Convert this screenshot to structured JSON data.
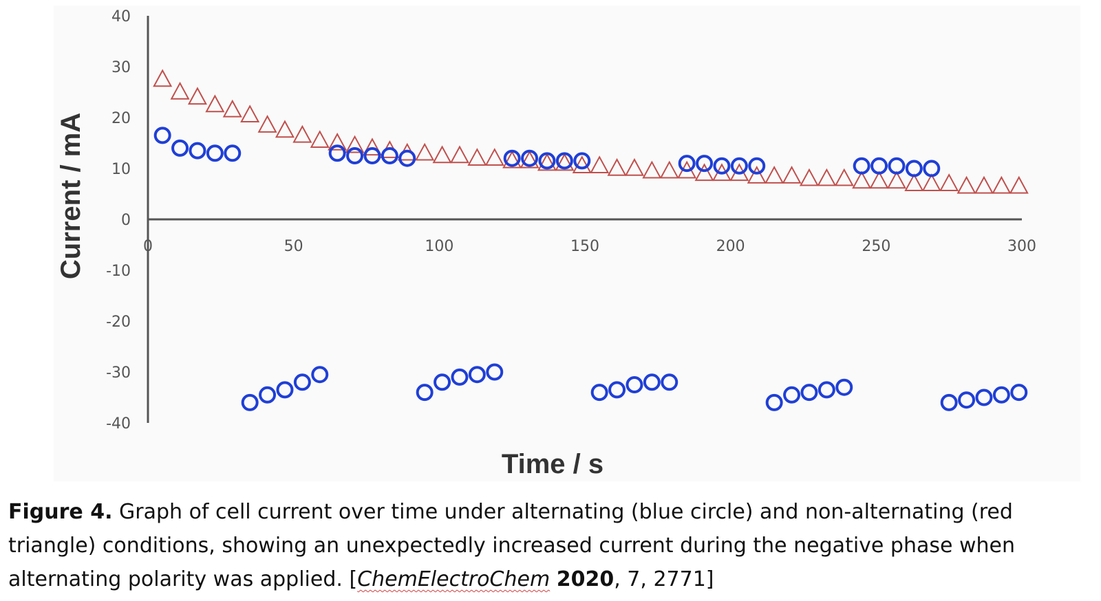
{
  "chart_data": {
    "type": "scatter",
    "title": "",
    "xlabel": "Time / s",
    "ylabel": "Current / mA",
    "xlim": [
      0,
      300
    ],
    "ylim": [
      -40,
      40
    ],
    "x_ticks": [
      "0",
      "50",
      "100",
      "150",
      "200",
      "250",
      "300"
    ],
    "y_ticks": [
      "40",
      "30",
      "20",
      "10",
      "0",
      "-10",
      "-20",
      "-30",
      "-40"
    ],
    "series": [
      {
        "name": "non-alternating (red triangle)",
        "marker": "triangle",
        "color": "#c0504d",
        "x": [
          5,
          11,
          17,
          23,
          29,
          35,
          41,
          47,
          53,
          59,
          65,
          71,
          77,
          83,
          89,
          95,
          101,
          107,
          113,
          119,
          125,
          131,
          137,
          143,
          149,
          155,
          161,
          167,
          173,
          179,
          185,
          191,
          197,
          203,
          209,
          215,
          221,
          227,
          233,
          239,
          245,
          251,
          257,
          263,
          269,
          275,
          281,
          287,
          293,
          299
        ],
        "y": [
          27.5,
          25.0,
          24.0,
          22.5,
          21.5,
          20.5,
          18.5,
          17.5,
          16.5,
          15.5,
          15.0,
          14.5,
          14.0,
          13.5,
          13.0,
          13.0,
          12.5,
          12.5,
          12.0,
          12.0,
          11.5,
          11.5,
          11.0,
          11.0,
          10.5,
          10.5,
          10.0,
          10.0,
          9.5,
          9.5,
          9.5,
          9.0,
          9.0,
          9.0,
          8.5,
          8.5,
          8.5,
          8.0,
          8.0,
          8.0,
          7.5,
          7.5,
          7.5,
          7.0,
          7.0,
          7.0,
          6.5,
          6.5,
          6.5,
          6.5
        ]
      },
      {
        "name": "alternating (blue circle)",
        "marker": "circle",
        "color": "#1f3fd6",
        "x": [
          5,
          11,
          17,
          23,
          29,
          35,
          41,
          47,
          53,
          59,
          65,
          71,
          77,
          83,
          89,
          95,
          101,
          107,
          113,
          119,
          125,
          131,
          137,
          143,
          149,
          155,
          161,
          167,
          173,
          179,
          185,
          191,
          197,
          203,
          209,
          215,
          221,
          227,
          233,
          239,
          245,
          251,
          257,
          263,
          269,
          275,
          281,
          287,
          293,
          299
        ],
        "y": [
          16.5,
          14.0,
          13.5,
          13.0,
          13.0,
          -36.0,
          -34.5,
          -33.5,
          -32.0,
          -30.5,
          13.0,
          12.5,
          12.5,
          12.5,
          12.0,
          -34.0,
          -32.0,
          -31.0,
          -30.5,
          -30.0,
          12.0,
          12.0,
          11.5,
          11.5,
          11.5,
          -34.0,
          -33.5,
          -32.5,
          -32.0,
          -32.0,
          11.0,
          11.0,
          10.5,
          10.5,
          10.5,
          -36.0,
          -34.5,
          -34.0,
          -33.5,
          -33.0,
          10.5,
          10.5,
          10.5,
          10.0,
          10.0,
          -36.0,
          -35.5,
          -35.0,
          -34.5,
          -34.0
        ]
      }
    ]
  },
  "caption": {
    "label": "Figure 4.",
    "text": " Graph of cell current over time under alternating (blue circle) and non-alternating (red triangle) conditions, showing an unexpectedly increased current during the negative phase when alternating polarity was applied. [",
    "journal": "ChemElectroChem",
    "year": "2020",
    "ref_rest": ", 7, 2771]"
  }
}
